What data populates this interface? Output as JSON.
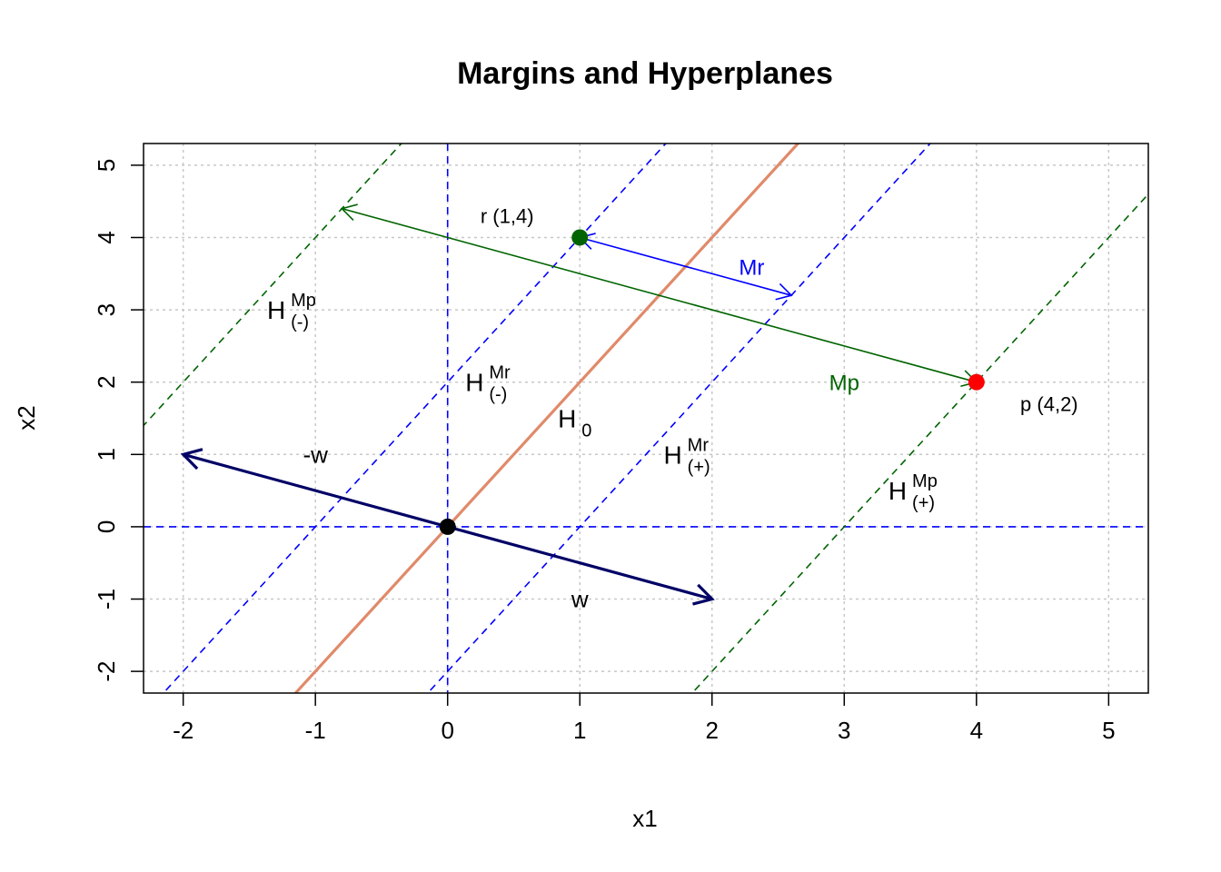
{
  "chart_data": {
    "type": "line",
    "title": "Margins and Hyperplanes",
    "xlabel": "x1",
    "ylabel": "x2",
    "xlim": [
      -2.3,
      5.3
    ],
    "ylim": [
      -2.3,
      5.3
    ],
    "x_ticks": [
      -2,
      -1,
      0,
      1,
      2,
      3,
      4,
      5
    ],
    "y_ticks": [
      -2,
      -1,
      0,
      1,
      2,
      3,
      4,
      5
    ],
    "grid": true,
    "axis_lines": {
      "horizontal_y": 0,
      "vertical_x": 0,
      "color": "#0000ff"
    },
    "hyperplanes": [
      {
        "id": "H0",
        "label": "H",
        "subscript": "0",
        "superscript": "",
        "slope": 2,
        "intercept": 0,
        "color": "#e08a6a",
        "dashed": false,
        "label_at": [
          1.0,
          1.5
        ]
      },
      {
        "id": "Hr_minus",
        "label": "H",
        "subscript": "(-)",
        "superscript": "Mr",
        "slope": 2,
        "intercept": 2,
        "color": "#0000ff",
        "dashed": true,
        "label_at": [
          0.3,
          2.0
        ]
      },
      {
        "id": "Hr_plus",
        "label": "H",
        "subscript": "(+)",
        "superscript": "Mr",
        "slope": 2,
        "intercept": -2,
        "color": "#0000ff",
        "dashed": true,
        "label_at": [
          1.8,
          1.0
        ]
      },
      {
        "id": "Hp_minus",
        "label": "H",
        "subscript": "(-)",
        "superscript": "Mp",
        "slope": 2,
        "intercept": 6,
        "color": "#006400",
        "dashed": true,
        "label_at": [
          -1.2,
          3.0
        ]
      },
      {
        "id": "Hp_plus",
        "label": "H",
        "subscript": "(+)",
        "superscript": "Mp",
        "slope": 2,
        "intercept": -6,
        "color": "#006400",
        "dashed": true,
        "label_at": [
          3.5,
          0.5
        ]
      }
    ],
    "vectors": [
      {
        "id": "w",
        "label": "w",
        "from": [
          0,
          0
        ],
        "to": [
          2,
          -1
        ],
        "color": "#000066",
        "label_at": [
          1.0,
          -1.0
        ]
      },
      {
        "id": "neg_w",
        "label": "-w",
        "from": [
          0,
          0
        ],
        "to": [
          -2,
          1
        ],
        "color": "#000066",
        "label_at": [
          -1.0,
          1.0
        ]
      }
    ],
    "margins": [
      {
        "id": "Mr",
        "label": "Mr",
        "from": [
          2.6,
          3.2
        ],
        "to": [
          1.0,
          4.0
        ],
        "color": "#0000ff",
        "double_headed": true,
        "label_at": [
          2.3,
          3.6
        ]
      },
      {
        "id": "Mp",
        "label": "Mp",
        "from": [
          4.0,
          2.0
        ],
        "to": [
          -0.8,
          4.4
        ],
        "color": "#006400",
        "double_headed": true,
        "label_at": [
          3.0,
          2.0
        ]
      }
    ],
    "points": [
      {
        "id": "origin",
        "label": "",
        "x": 0,
        "y": 0,
        "color": "#000000"
      },
      {
        "id": "r",
        "label": "r (1,4)",
        "x": 1,
        "y": 4,
        "color": "#006400",
        "label_at": [
          0.45,
          4.3
        ]
      },
      {
        "id": "p",
        "label": "p (4,2)",
        "x": 4,
        "y": 2,
        "color": "#ff0000",
        "label_at": [
          4.55,
          1.7
        ]
      }
    ]
  }
}
